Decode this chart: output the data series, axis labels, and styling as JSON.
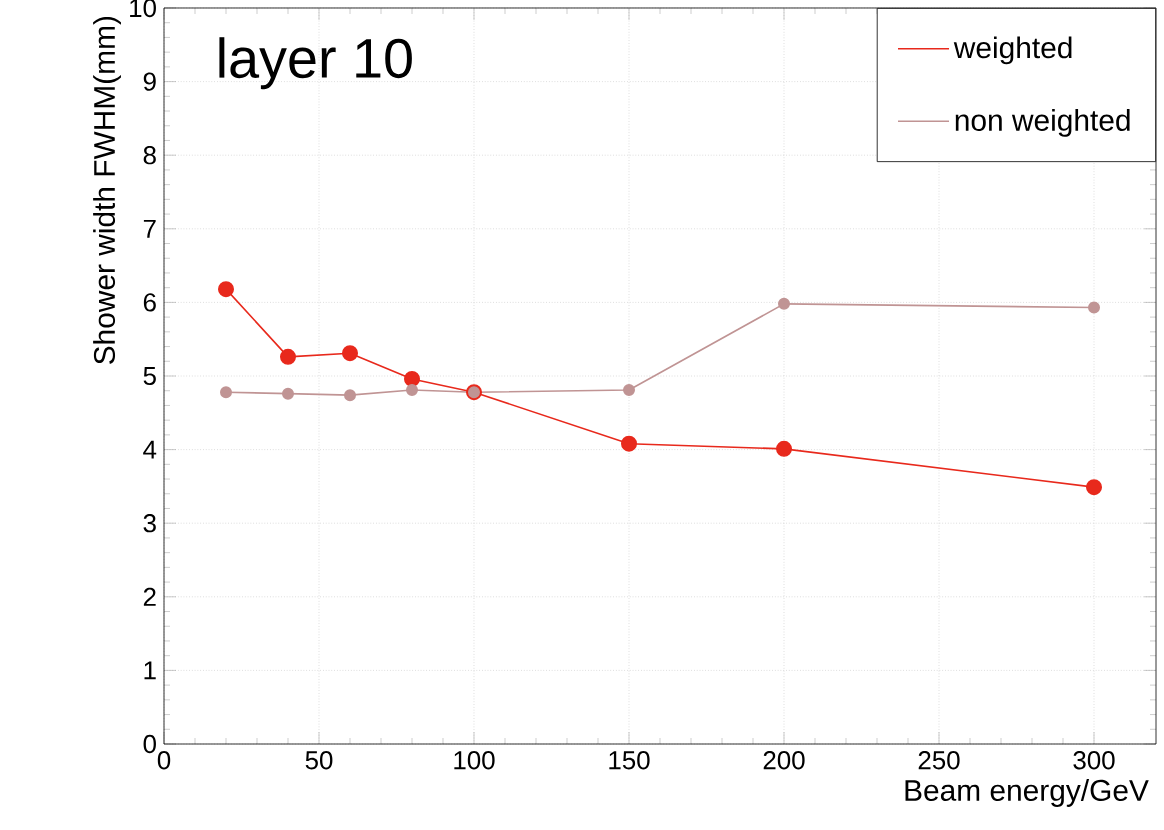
{
  "chart_data": {
    "type": "line",
    "xlabel": "Beam energy/GeV",
    "ylabel": "Shower width FWHM(mm)",
    "annotations": [
      "layer 10"
    ],
    "x": [
      20,
      40,
      60,
      80,
      100,
      150,
      200,
      300
    ],
    "series": [
      {
        "name": "weighted",
        "color": "#e8291c",
        "values": [
          6.18,
          5.26,
          5.31,
          4.96,
          4.78,
          4.08,
          4.01,
          3.49
        ]
      },
      {
        "name": "non weighted",
        "color": "#c09494",
        "values": [
          4.78,
          4.76,
          4.74,
          4.81,
          4.78,
          4.81,
          5.98,
          5.93
        ]
      }
    ],
    "xlim": [
      0,
      320
    ],
    "ylim": [
      0,
      10
    ],
    "xticks": [
      0,
      50,
      100,
      150,
      200,
      250,
      300
    ],
    "yticks": [
      0,
      1,
      2,
      3,
      4,
      5,
      6,
      7,
      8,
      9,
      10
    ],
    "grid": true,
    "legend": "top right",
    "marker": "circle",
    "line_style": "solid"
  }
}
